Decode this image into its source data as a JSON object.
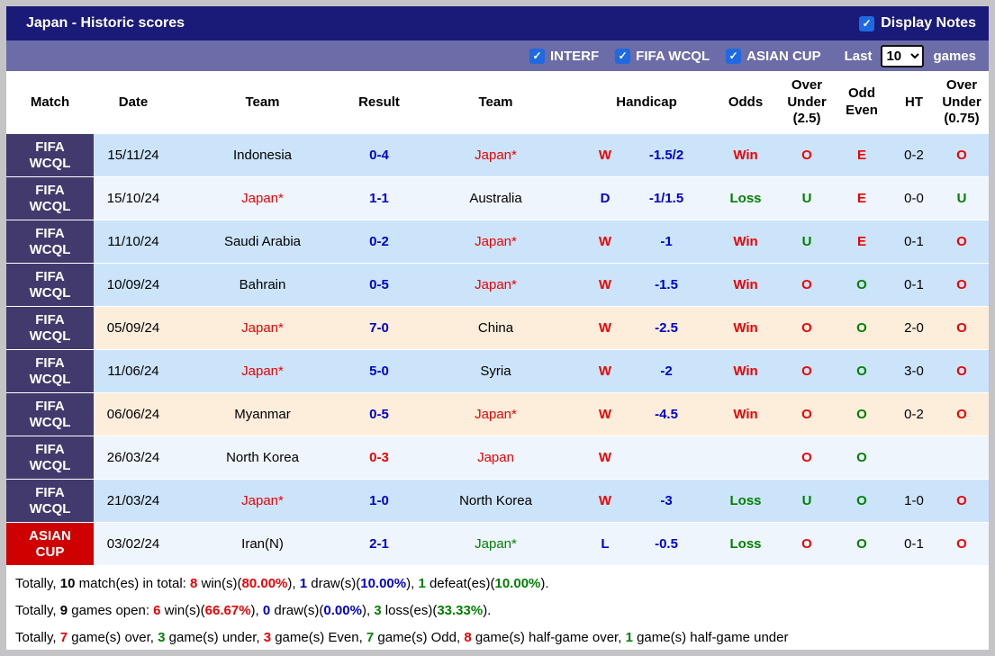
{
  "title_bar": {
    "title": "Japan - Historic scores",
    "display_notes_label": "Display Notes",
    "display_notes_checked": true
  },
  "filter_bar": {
    "checkboxes": [
      {
        "label": "INTERF",
        "checked": true
      },
      {
        "label": "FIFA WCQL",
        "checked": true
      },
      {
        "label": "ASIAN CUP",
        "checked": true
      }
    ],
    "last_label": "Last",
    "games_count": "10",
    "games_label": "games"
  },
  "palette": {
    "red": "#ee0000",
    "blue": "#0000cc",
    "green": "#008000",
    "black": "#000000",
    "navy_bar": "#1a1a78",
    "filter_bar": "#6c6ca8",
    "badge_fifa": "#423a6d",
    "badge_asian": "#ce0000",
    "checkbox_blue": "#1f6ae0"
  },
  "row_backgrounds": {
    "blue": "#cce4fa",
    "pale": "#eef5fd",
    "cream": "#fdeedc"
  },
  "table": {
    "headers": [
      {
        "label": "Match"
      },
      {
        "label": "Date"
      },
      {
        "label": "Team"
      },
      {
        "label": "Result"
      },
      {
        "label": "Team"
      },
      {
        "label": "Handicap",
        "colspan": 2
      },
      {
        "label": "Odds"
      },
      {
        "label": "Over Under (2.5)"
      },
      {
        "label": "Odd Even"
      },
      {
        "label": "HT"
      },
      {
        "label": "Over Under (0.75)"
      }
    ],
    "rows": [
      {
        "competition": "FIFA WCQL",
        "badge": "fifa",
        "date": "15/11/24",
        "team1": {
          "text": "Indonesia",
          "color": "black"
        },
        "score": {
          "text": "0-4",
          "color": "blue"
        },
        "team2": {
          "text": "Japan*",
          "color": "red"
        },
        "wdl": {
          "text": "W",
          "color": "red"
        },
        "handicap": "-1.5/2",
        "odds": {
          "text": "Win",
          "color": "red"
        },
        "over_under_25": {
          "text": "O",
          "color": "red"
        },
        "odd_even": {
          "text": "E",
          "color": "red"
        },
        "ht": "0-2",
        "over_under_075": {
          "text": "O",
          "color": "red"
        },
        "bg": "blue"
      },
      {
        "competition": "FIFA WCQL",
        "badge": "fifa",
        "date": "15/10/24",
        "team1": {
          "text": "Japan*",
          "color": "red"
        },
        "score": {
          "text": "1-1",
          "color": "blue"
        },
        "team2": {
          "text": "Australia",
          "color": "black"
        },
        "wdl": {
          "text": "D",
          "color": "blue"
        },
        "handicap": "-1/1.5",
        "odds": {
          "text": "Loss",
          "color": "green"
        },
        "over_under_25": {
          "text": "U",
          "color": "green"
        },
        "odd_even": {
          "text": "E",
          "color": "red"
        },
        "ht": "0-0",
        "over_under_075": {
          "text": "U",
          "color": "green"
        },
        "bg": "pale"
      },
      {
        "competition": "FIFA WCQL",
        "badge": "fifa",
        "date": "11/10/24",
        "team1": {
          "text": "Saudi Arabia",
          "color": "black"
        },
        "score": {
          "text": "0-2",
          "color": "blue"
        },
        "team2": {
          "text": "Japan*",
          "color": "red"
        },
        "wdl": {
          "text": "W",
          "color": "red"
        },
        "handicap": "-1",
        "odds": {
          "text": "Win",
          "color": "red"
        },
        "over_under_25": {
          "text": "U",
          "color": "green"
        },
        "odd_even": {
          "text": "E",
          "color": "red"
        },
        "ht": "0-1",
        "over_under_075": {
          "text": "O",
          "color": "red"
        },
        "bg": "blue"
      },
      {
        "competition": "FIFA WCQL",
        "badge": "fifa",
        "date": "10/09/24",
        "team1": {
          "text": "Bahrain",
          "color": "black"
        },
        "score": {
          "text": "0-5",
          "color": "blue"
        },
        "team2": {
          "text": "Japan*",
          "color": "red"
        },
        "wdl": {
          "text": "W",
          "color": "red"
        },
        "handicap": "-1.5",
        "odds": {
          "text": "Win",
          "color": "red"
        },
        "over_under_25": {
          "text": "O",
          "color": "red"
        },
        "odd_even": {
          "text": "O",
          "color": "green"
        },
        "ht": "0-1",
        "over_under_075": {
          "text": "O",
          "color": "red"
        },
        "bg": "blue"
      },
      {
        "competition": "FIFA WCQL",
        "badge": "fifa",
        "date": "05/09/24",
        "team1": {
          "text": "Japan*",
          "color": "red"
        },
        "score": {
          "text": "7-0",
          "color": "blue"
        },
        "team2": {
          "text": "China",
          "color": "black"
        },
        "wdl": {
          "text": "W",
          "color": "red"
        },
        "handicap": "-2.5",
        "odds": {
          "text": "Win",
          "color": "red"
        },
        "over_under_25": {
          "text": "O",
          "color": "red"
        },
        "odd_even": {
          "text": "O",
          "color": "green"
        },
        "ht": "2-0",
        "over_under_075": {
          "text": "O",
          "color": "red"
        },
        "bg": "cream"
      },
      {
        "competition": "FIFA WCQL",
        "badge": "fifa",
        "date": "11/06/24",
        "team1": {
          "text": "Japan*",
          "color": "red"
        },
        "score": {
          "text": "5-0",
          "color": "blue"
        },
        "team2": {
          "text": "Syria",
          "color": "black"
        },
        "wdl": {
          "text": "W",
          "color": "red"
        },
        "handicap": "-2",
        "odds": {
          "text": "Win",
          "color": "red"
        },
        "over_under_25": {
          "text": "O",
          "color": "red"
        },
        "odd_even": {
          "text": "O",
          "color": "green"
        },
        "ht": "3-0",
        "over_under_075": {
          "text": "O",
          "color": "red"
        },
        "bg": "blue"
      },
      {
        "competition": "FIFA WCQL",
        "badge": "fifa",
        "date": "06/06/24",
        "team1": {
          "text": "Myanmar",
          "color": "black"
        },
        "score": {
          "text": "0-5",
          "color": "blue"
        },
        "team2": {
          "text": "Japan*",
          "color": "red"
        },
        "wdl": {
          "text": "W",
          "color": "red"
        },
        "handicap": "-4.5",
        "odds": {
          "text": "Win",
          "color": "red"
        },
        "over_under_25": {
          "text": "O",
          "color": "red"
        },
        "odd_even": {
          "text": "O",
          "color": "green"
        },
        "ht": "0-2",
        "over_under_075": {
          "text": "O",
          "color": "red"
        },
        "bg": "cream"
      },
      {
        "competition": "FIFA WCQL",
        "badge": "fifa",
        "date": "26/03/24",
        "team1": {
          "text": "North Korea",
          "color": "black"
        },
        "score": {
          "text": "0-3",
          "color": "red"
        },
        "team2": {
          "text": "Japan",
          "color": "red"
        },
        "wdl": {
          "text": "W",
          "color": "red"
        },
        "handicap": "",
        "odds": {
          "text": "",
          "color": "black"
        },
        "over_under_25": {
          "text": "O",
          "color": "red"
        },
        "odd_even": {
          "text": "O",
          "color": "green"
        },
        "ht": "",
        "over_under_075": {
          "text": "",
          "color": "black"
        },
        "bg": "pale"
      },
      {
        "competition": "FIFA WCQL",
        "badge": "fifa",
        "date": "21/03/24",
        "team1": {
          "text": "Japan*",
          "color": "red"
        },
        "score": {
          "text": "1-0",
          "color": "blue"
        },
        "team2": {
          "text": "North Korea",
          "color": "black"
        },
        "wdl": {
          "text": "W",
          "color": "red"
        },
        "handicap": "-3",
        "odds": {
          "text": "Loss",
          "color": "green"
        },
        "over_under_25": {
          "text": "U",
          "color": "green"
        },
        "odd_even": {
          "text": "O",
          "color": "green"
        },
        "ht": "1-0",
        "over_under_075": {
          "text": "O",
          "color": "red"
        },
        "bg": "blue"
      },
      {
        "competition": "ASIAN CUP",
        "badge": "asian",
        "date": "03/02/24",
        "team1": {
          "text": "Iran(N)",
          "color": "black"
        },
        "score": {
          "text": "2-1",
          "color": "blue"
        },
        "team2": {
          "text": "Japan*",
          "color": "green"
        },
        "wdl": {
          "text": "L",
          "color": "blue"
        },
        "handicap": "-0.5",
        "odds": {
          "text": "Loss",
          "color": "green"
        },
        "over_under_25": {
          "text": "O",
          "color": "red"
        },
        "odd_even": {
          "text": "O",
          "color": "green"
        },
        "ht": "0-1",
        "over_under_075": {
          "text": "O",
          "color": "red"
        },
        "bg": "pale"
      }
    ]
  },
  "summary": {
    "lines": [
      [
        {
          "t": "Totally, "
        },
        {
          "t": "10",
          "b": true
        },
        {
          "t": " match(es) in total: "
        },
        {
          "t": "8",
          "c": "red",
          "b": true
        },
        {
          "t": " win(s)("
        },
        {
          "t": "80.00%",
          "c": "red",
          "b": true
        },
        {
          "t": "), "
        },
        {
          "t": "1",
          "c": "blue",
          "b": true
        },
        {
          "t": " draw(s)("
        },
        {
          "t": "10.00%",
          "c": "blue",
          "b": true
        },
        {
          "t": "), "
        },
        {
          "t": "1",
          "c": "green",
          "b": true
        },
        {
          "t": " defeat(es)("
        },
        {
          "t": "10.00%",
          "c": "green",
          "b": true
        },
        {
          "t": ")."
        }
      ],
      [
        {
          "t": "Totally, "
        },
        {
          "t": "9",
          "b": true
        },
        {
          "t": " games open: "
        },
        {
          "t": "6",
          "c": "red",
          "b": true
        },
        {
          "t": " win(s)("
        },
        {
          "t": "66.67%",
          "c": "red",
          "b": true
        },
        {
          "t": "), "
        },
        {
          "t": "0",
          "c": "blue",
          "b": true
        },
        {
          "t": " draw(s)("
        },
        {
          "t": "0.00%",
          "c": "blue",
          "b": true
        },
        {
          "t": "), "
        },
        {
          "t": "3",
          "c": "green",
          "b": true
        },
        {
          "t": " loss(es)("
        },
        {
          "t": "33.33%",
          "c": "green",
          "b": true
        },
        {
          "t": ")."
        }
      ],
      [
        {
          "t": "Totally, "
        },
        {
          "t": "7",
          "c": "red",
          "b": true
        },
        {
          "t": " game(s) over, "
        },
        {
          "t": "3",
          "c": "green",
          "b": true
        },
        {
          "t": " game(s) under, "
        },
        {
          "t": "3",
          "c": "red",
          "b": true
        },
        {
          "t": " game(s) Even, "
        },
        {
          "t": "7",
          "c": "green",
          "b": true
        },
        {
          "t": " game(s) Odd, "
        },
        {
          "t": "8",
          "c": "red",
          "b": true
        },
        {
          "t": " game(s) half-game over, "
        },
        {
          "t": "1",
          "c": "green",
          "b": true
        },
        {
          "t": " game(s) half-game under"
        }
      ]
    ]
  }
}
